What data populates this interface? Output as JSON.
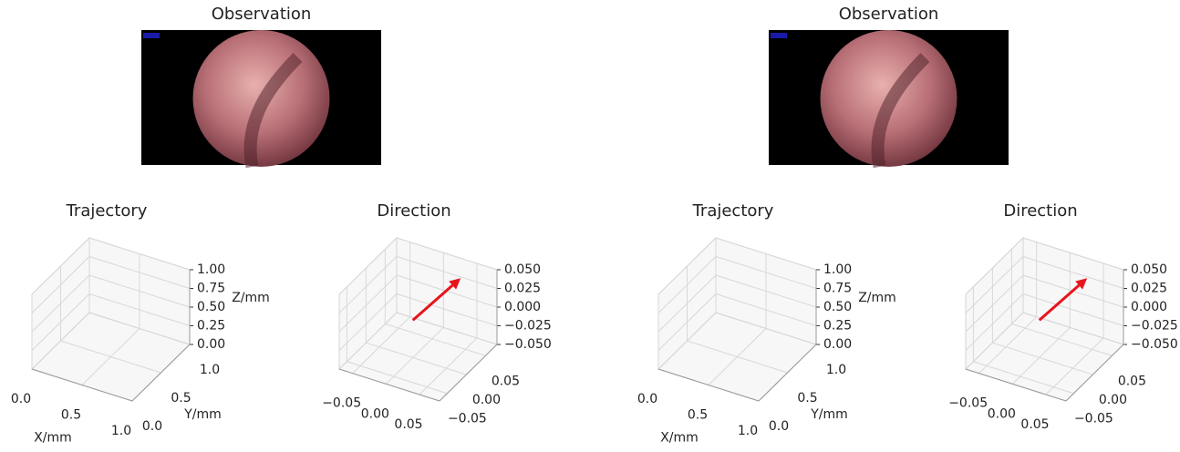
{
  "chart_data": [
    {
      "type": "image",
      "title": "Observation"
    },
    {
      "type": "line3d",
      "title": "Trajectory",
      "xlabel": "X/mm",
      "ylabel": "Y/mm",
      "zlabel": "Z/mm",
      "xlim": [
        0,
        1
      ],
      "ylim": [
        0,
        1
      ],
      "zlim": [
        0,
        1
      ],
      "xticks": [
        {
          "value": 0,
          "label": "0.0"
        },
        0.5,
        {
          "value": 1,
          "label": "1.0"
        }
      ],
      "yticks": [
        {
          "value": 0,
          "label": "0.0"
        },
        0.5,
        {
          "value": 1,
          "label": "1.0"
        }
      ],
      "zticks": [
        {
          "value": 0,
          "label": "0.00"
        },
        0.25,
        {
          "value": 0.5,
          "label": "0.50"
        },
        0.75,
        {
          "value": 1,
          "label": "1.00"
        }
      ]
    },
    {
      "type": "quiver3d",
      "title": "Direction",
      "color": "#e8141c",
      "xlim": [
        -0.07,
        0.08
      ],
      "ylim": [
        -0.07,
        0.08
      ],
      "zlim": [
        -0.05,
        0.05
      ],
      "xticks": [
        {
          "value": -0.05,
          "label": "−0.05"
        },
        {
          "value": 0,
          "label": "0.00"
        },
        0.05
      ],
      "yticks": [
        {
          "value": -0.05,
          "label": "−0.05"
        },
        {
          "value": 0,
          "label": "0.00"
        },
        0.05
      ],
      "zticks": [
        {
          "value": -0.05,
          "label": "−0.050"
        },
        {
          "value": -0.025,
          "label": "−0.025"
        },
        {
          "value": 0,
          "label": "0.000"
        },
        0.025,
        {
          "value": 0.05,
          "label": "0.050"
        }
      ],
      "arrow": {
        "start": [
          0,
          0,
          0
        ],
        "end": [
          0.04,
          0.055,
          0.04
        ]
      }
    },
    {
      "type": "image",
      "title": "Observation"
    },
    {
      "type": "line3d",
      "title": "Trajectory",
      "xlabel": "X/mm",
      "ylabel": "Y/mm",
      "zlabel": "Z/mm",
      "xlim": [
        0,
        1
      ],
      "ylim": [
        0,
        1
      ],
      "zlim": [
        0,
        1
      ],
      "xticks": [
        {
          "value": 0,
          "label": "0.0"
        },
        0.5,
        {
          "value": 1,
          "label": "1.0"
        }
      ],
      "yticks": [
        {
          "value": 0,
          "label": "0.0"
        },
        0.5,
        {
          "value": 1,
          "label": "1.0"
        }
      ],
      "zticks": [
        {
          "value": 0,
          "label": "0.00"
        },
        0.25,
        {
          "value": 0.5,
          "label": "0.50"
        },
        0.75,
        {
          "value": 1,
          "label": "1.00"
        }
      ]
    },
    {
      "type": "quiver3d",
      "title": "Direction",
      "color": "#e8141c",
      "xlim": [
        -0.07,
        0.08
      ],
      "ylim": [
        -0.07,
        0.08
      ],
      "zlim": [
        -0.05,
        0.05
      ],
      "xticks": [
        {
          "value": -0.05,
          "label": "−0.05"
        },
        {
          "value": 0,
          "label": "0.00"
        },
        0.05
      ],
      "yticks": [
        {
          "value": -0.05,
          "label": "−0.05"
        },
        {
          "value": 0,
          "label": "0.00"
        },
        0.05
      ],
      "zticks": [
        {
          "value": -0.05,
          "label": "−0.050"
        },
        {
          "value": -0.025,
          "label": "−0.025"
        },
        {
          "value": 0,
          "label": "0.000"
        },
        0.025,
        {
          "value": 0.05,
          "label": "0.050"
        }
      ],
      "arrow": {
        "start": [
          0,
          0,
          0
        ],
        "end": [
          0.04,
          0.055,
          0.04
        ]
      }
    }
  ]
}
